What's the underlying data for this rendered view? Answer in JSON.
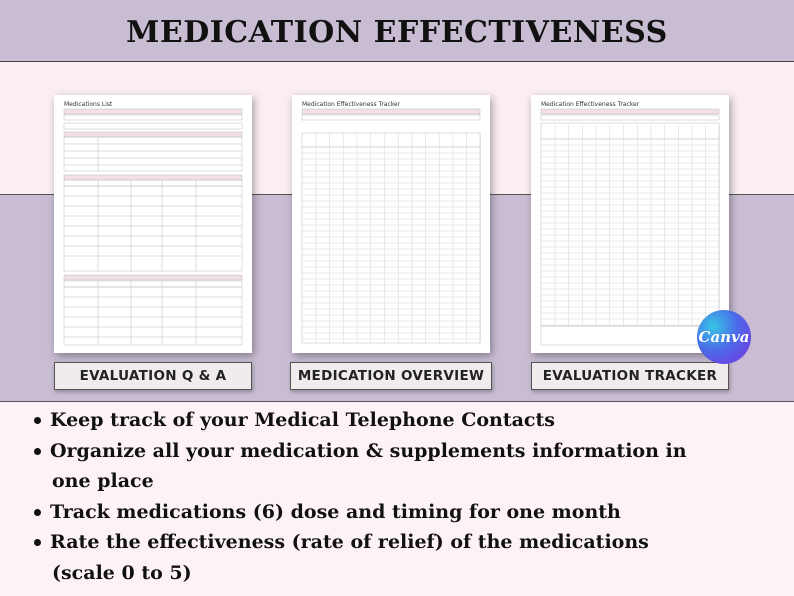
{
  "title": "MEDICATION EFFECTIVENESS",
  "sheets": [
    {
      "title": "Medications List",
      "label": "EVALUATION Q & A"
    },
    {
      "title": "Medication Effectiveness Tracker",
      "label": "MEDICATION OVERVIEW"
    },
    {
      "title": "Medication Effectiveness Tracker",
      "label": "EVALUATION TRACKER"
    }
  ],
  "badge": "Canva",
  "bullets": [
    {
      "line1": "Keep track of your Medical Telephone Contacts",
      "line2": ""
    },
    {
      "line1": "Organize all your medication & supplements information in",
      "line2": "one place"
    },
    {
      "line1": "Track medications (6) dose and timing for one month",
      "line2": ""
    },
    {
      "line1": "Rate the effectiveness (rate of relief) of the medications",
      "line2": "(scale 0 to 5)"
    }
  ],
  "colors": {
    "band": "#c8bdd2",
    "background": "#fbeef3",
    "sheet_header": "#f3dfe6"
  }
}
